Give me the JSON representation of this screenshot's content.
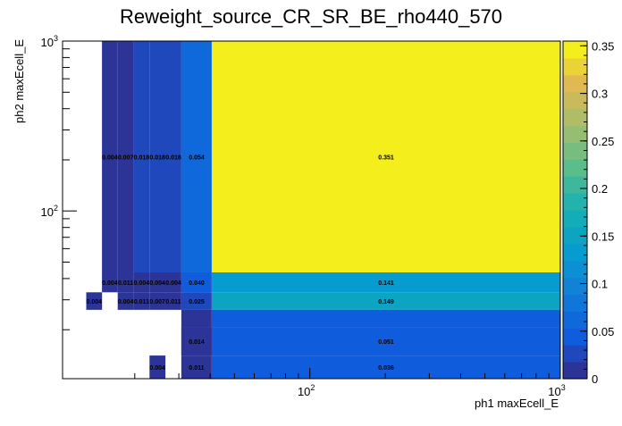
{
  "chart_data": {
    "type": "heatmap",
    "title": "Reweight_source_CR_SR_BE_rho440_570",
    "xlabel": "ph1 maxEcell_E",
    "ylabel": "ph2 maxEcell_E",
    "x_scale": "log",
    "y_scale": "log",
    "xlim": [
      10.3,
      1000
    ],
    "ylim": [
      10.3,
      1000
    ],
    "x_tick_labels": [
      "10^2",
      "10^3"
    ],
    "y_tick_labels": [
      "10^2",
      "10^3"
    ],
    "colorbar": {
      "range": [
        0,
        0.355
      ],
      "tick_labels": [
        "0",
        "0.05",
        "0.1",
        "0.15",
        "0.2",
        "0.25",
        "0.3",
        "0.35"
      ],
      "tick_values": [
        0,
        0.05,
        0.1,
        0.15,
        0.2,
        0.25,
        0.3,
        0.35
      ],
      "position": "right"
    },
    "cells": [
      {
        "x0": 14.8,
        "x1": 17.1,
        "y0": 43.5,
        "y1": 1000,
        "value": 0.004,
        "label": "0.004"
      },
      {
        "x0": 17.1,
        "x1": 19.8,
        "y0": 43.5,
        "y1": 1000,
        "value": 0.007,
        "label": "0.007"
      },
      {
        "x0": 19.8,
        "x1": 22.9,
        "y0": 43.5,
        "y1": 1000,
        "value": 0.018,
        "label": "0.018"
      },
      {
        "x0": 22.9,
        "x1": 26.5,
        "y0": 43.5,
        "y1": 1000,
        "value": 0.018,
        "label": "0.018"
      },
      {
        "x0": 26.5,
        "x1": 30.7,
        "y0": 43.5,
        "y1": 1000,
        "value": 0.018,
        "label": "0.018"
      },
      {
        "x0": 30.7,
        "x1": 40.6,
        "y0": 43.5,
        "y1": 1000,
        "value": 0.054,
        "label": "0.054"
      },
      {
        "x0": 40.6,
        "x1": 1000,
        "y0": 43.5,
        "y1": 1000,
        "value": 0.351,
        "label": "0.351"
      },
      {
        "x0": 14.8,
        "x1": 17.1,
        "y0": 33.2,
        "y1": 43.5,
        "value": 0.004,
        "label": "0.004"
      },
      {
        "x0": 17.1,
        "x1": 19.8,
        "y0": 33.2,
        "y1": 43.5,
        "value": 0.011,
        "label": "0.011"
      },
      {
        "x0": 19.8,
        "x1": 22.9,
        "y0": 33.2,
        "y1": 43.5,
        "value": 0.004,
        "label": "0.004"
      },
      {
        "x0": 22.9,
        "x1": 26.5,
        "y0": 33.2,
        "y1": 43.5,
        "value": 0.004,
        "label": "0.004"
      },
      {
        "x0": 26.5,
        "x1": 30.7,
        "y0": 33.2,
        "y1": 43.5,
        "value": 0.004,
        "label": "0.004"
      },
      {
        "x0": 30.7,
        "x1": 40.6,
        "y0": 33.2,
        "y1": 43.5,
        "value": 0.04,
        "label": "0.040"
      },
      {
        "x0": 40.6,
        "x1": 1000,
        "y0": 33.2,
        "y1": 43.5,
        "value": 0.141,
        "label": "0.141"
      },
      {
        "x0": 12.8,
        "x1": 14.8,
        "y0": 26.2,
        "y1": 33.2,
        "value": 0.004,
        "label": "0.004"
      },
      {
        "x0": 17.1,
        "x1": 19.8,
        "y0": 26.2,
        "y1": 33.2,
        "value": 0.004,
        "label": "0.004"
      },
      {
        "x0": 19.8,
        "x1": 22.9,
        "y0": 26.2,
        "y1": 33.2,
        "value": 0.011,
        "label": "0.011"
      },
      {
        "x0": 22.9,
        "x1": 26.5,
        "y0": 26.2,
        "y1": 33.2,
        "value": 0.007,
        "label": "0.007"
      },
      {
        "x0": 26.5,
        "x1": 30.7,
        "y0": 26.2,
        "y1": 33.2,
        "value": 0.011,
        "label": "0.011"
      },
      {
        "x0": 30.7,
        "x1": 40.6,
        "y0": 26.2,
        "y1": 33.2,
        "value": 0.025,
        "label": "0.025"
      },
      {
        "x0": 40.6,
        "x1": 1000,
        "y0": 26.2,
        "y1": 33.2,
        "value": 0.149,
        "label": "0.149"
      },
      {
        "x0": 30.7,
        "x1": 40.6,
        "y0": 14.1,
        "y1": 20.7,
        "value": 0.014,
        "label": "0.014"
      },
      {
        "x0": 40.6,
        "x1": 1000,
        "y0": 14.1,
        "y1": 20.7,
        "value": 0.051,
        "label": "0.051"
      },
      {
        "x0": 22.9,
        "x1": 26.5,
        "y0": 10.3,
        "y1": 14.1,
        "value": 0.004,
        "label": "0.004"
      },
      {
        "x0": 30.7,
        "x1": 40.6,
        "y0": 10.3,
        "y1": 14.1,
        "value": 0.011,
        "label": "0.011"
      },
      {
        "x0": 40.6,
        "x1": 1000,
        "y0": 10.3,
        "y1": 14.1,
        "value": 0.036,
        "label": "0.036"
      },
      {
        "x0": 30.7,
        "x1": 40.6,
        "y0": 20.7,
        "y1": 26.2,
        "value": 0.014,
        "label": ""
      },
      {
        "x0": 40.6,
        "x1": 1000,
        "y0": 20.7,
        "y1": 26.2,
        "value": 0.051,
        "label": ""
      },
      {
        "x0": 30.7,
        "x1": 40.6,
        "y0": 14.1,
        "y1": 20.7,
        "value": 0.014,
        "label": ""
      }
    ],
    "grid": false
  }
}
